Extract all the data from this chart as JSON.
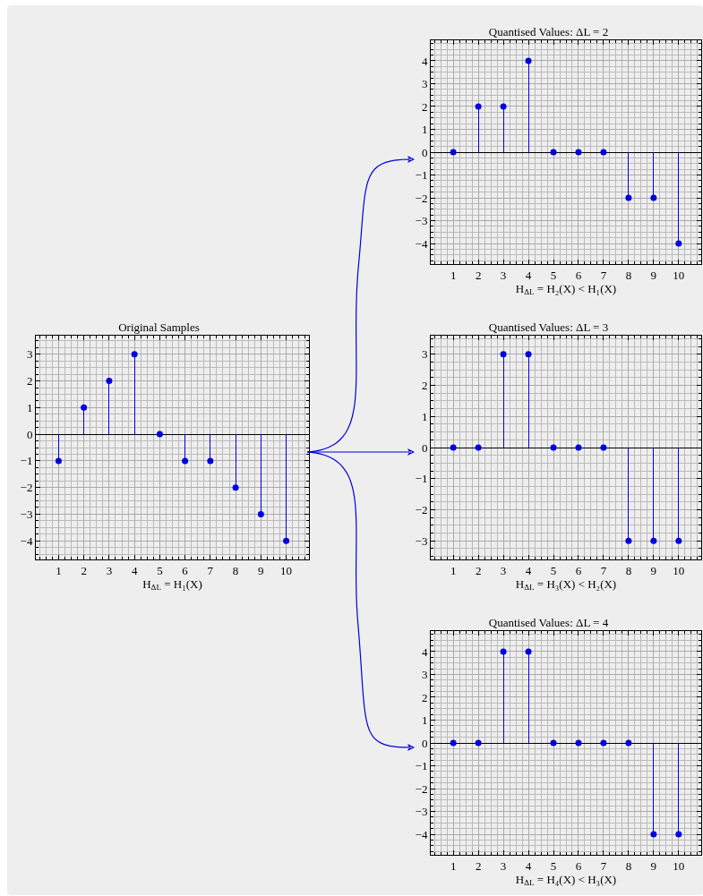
{
  "chart_data": [
    {
      "type": "lollipop",
      "title": "Original Samples",
      "xlabel": "H$_{ΔL}$ = H₁(X)",
      "x": [
        1,
        2,
        3,
        4,
        5,
        6,
        7,
        8,
        9,
        10
      ],
      "values": [
        -1,
        1,
        2,
        3,
        0,
        -1,
        -1,
        -2,
        -3,
        -4
      ],
      "color": "#0000dd",
      "xlim": [
        0.1,
        10.9
      ],
      "xticks": [
        1,
        2,
        3,
        4,
        5,
        6,
        7,
        8,
        9,
        10
      ],
      "ylim": [
        -4.7,
        3.7
      ],
      "yticks": [
        -4,
        -3,
        -2,
        -1,
        0,
        1,
        2,
        3
      ],
      "grid": true,
      "marker": "circle"
    },
    {
      "type": "lollipop",
      "title": "Quantised Values: ΔL = 2",
      "xlabel": "H$_{ΔL}$ = H₂(X) < H₁(X)",
      "x": [
        1,
        2,
        3,
        4,
        5,
        6,
        7,
        8,
        9,
        10
      ],
      "values": [
        0,
        2,
        2,
        4,
        0,
        0,
        0,
        -2,
        -2,
        -4
      ],
      "color": "#0000dd",
      "xlim": [
        0.1,
        10.9
      ],
      "xticks": [
        1,
        2,
        3,
        4,
        5,
        6,
        7,
        8,
        9,
        10
      ],
      "ylim": [
        -4.9,
        4.9
      ],
      "yticks": [
        -4,
        -3,
        -2,
        -1,
        0,
        1,
        2,
        3,
        4
      ],
      "grid": true,
      "marker": "circle"
    },
    {
      "type": "lollipop",
      "title": "Quantised Values: ΔL = 3",
      "xlabel": "H$_{ΔL}$ = H₃(X) < H₂(X)",
      "x": [
        1,
        2,
        3,
        4,
        5,
        6,
        7,
        8,
        9,
        10
      ],
      "values": [
        0,
        0,
        3,
        3,
        0,
        0,
        0,
        -3,
        -3,
        -3
      ],
      "color": "#0000dd",
      "xlim": [
        0.1,
        10.9
      ],
      "xticks": [
        1,
        2,
        3,
        4,
        5,
        6,
        7,
        8,
        9,
        10
      ],
      "ylim": [
        -3.6,
        3.6
      ],
      "yticks": [
        -3,
        -2,
        -1,
        0,
        1,
        2,
        3
      ],
      "grid": true,
      "marker": "circle"
    },
    {
      "type": "lollipop",
      "title": "Quantised Values: ΔL = 4",
      "xlabel": "H$_{ΔL}$ = H₄(X) < H₃(X)",
      "x": [
        1,
        2,
        3,
        4,
        5,
        6,
        7,
        8,
        9,
        10
      ],
      "values": [
        0,
        0,
        4,
        4,
        0,
        0,
        0,
        0,
        -4,
        -4
      ],
      "color": "#0000dd",
      "xlim": [
        0.1,
        10.9
      ],
      "xticks": [
        1,
        2,
        3,
        4,
        5,
        6,
        7,
        8,
        9,
        10
      ],
      "ylim": [
        -4.9,
        4.9
      ],
      "yticks": [
        -4,
        -3,
        -2,
        -1,
        0,
        1,
        2,
        3,
        4
      ],
      "grid": true,
      "marker": "circle"
    }
  ]
}
